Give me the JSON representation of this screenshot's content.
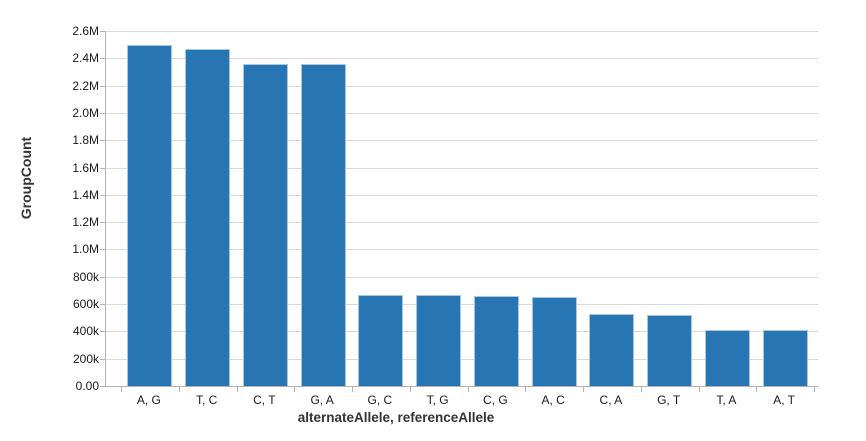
{
  "figure": {
    "background": "#ffffff"
  },
  "chart_data": {
    "type": "bar",
    "title": "",
    "xlabel": "alternateAllele, referenceAllele",
    "ylabel": "GroupCount",
    "categories": [
      "A, G",
      "T, C",
      "C, T",
      "G, A",
      "G, C",
      "T, G",
      "C, G",
      "A, C",
      "C, A",
      "G, T",
      "T, A",
      "A, T"
    ],
    "values": [
      2500000,
      2470000,
      2360000,
      2358000,
      665000,
      663000,
      658000,
      652000,
      527000,
      521000,
      410000,
      408000
    ],
    "ylim": [
      0,
      2600000
    ],
    "ytick_interval": 200000,
    "yticks": [
      "0.00",
      "200k",
      "400k",
      "600k",
      "800k",
      "1.0M",
      "1.2M",
      "1.4M",
      "1.6M",
      "1.8M",
      "2.0M",
      "2.2M",
      "2.4M",
      "2.6M"
    ],
    "grid": "horizontal",
    "legend": "none",
    "bar_color": "#2776b3",
    "bar_border_color": "#a9c7de",
    "gridline_color": "#d9d9d9",
    "axis_line_color": "#b3b3b3",
    "tick_label_color": "#1a1a1a",
    "axis_title_color": "#333333"
  }
}
